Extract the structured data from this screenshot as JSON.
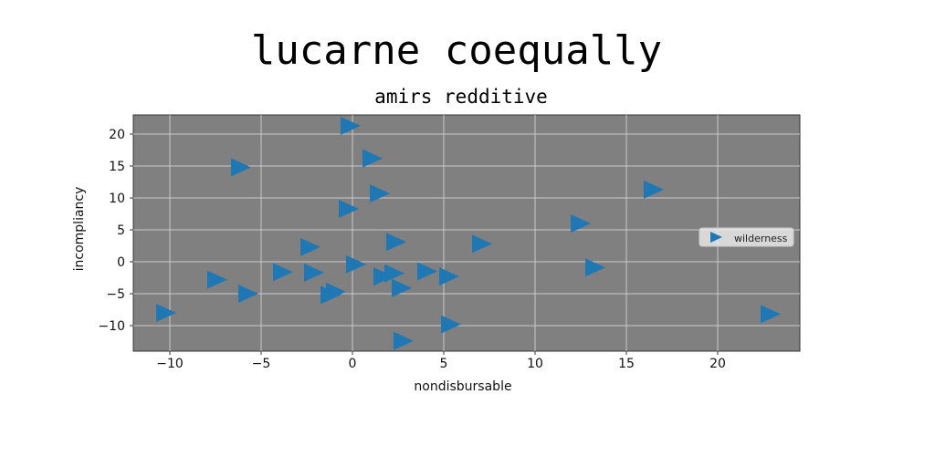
{
  "chart_data": {
    "type": "scatter",
    "title": "lucarne coequally",
    "subtitle": "amirs redditive",
    "xlabel": "nondisbursable",
    "ylabel": "incompliancy",
    "xlim": [
      -12,
      24.5
    ],
    "ylim": [
      -14,
      23
    ],
    "xticks": [
      -10,
      -5,
      0,
      5,
      10,
      15,
      20
    ],
    "yticks": [
      -10,
      -5,
      0,
      5,
      10,
      15,
      20
    ],
    "grid": true,
    "legend_position": "right",
    "colors": {
      "marker": "#1f77b4",
      "plot_bg": "#808080",
      "grid": "#c8c8c8"
    },
    "marker": "triangle-right",
    "series": [
      {
        "name": "wilderness",
        "points": [
          [
            -10.3,
            -8
          ],
          [
            -7.5,
            -2.8
          ],
          [
            -5.8,
            -5
          ],
          [
            -6.2,
            14.8
          ],
          [
            -3.9,
            -1.6
          ],
          [
            -2.2,
            -1.7
          ],
          [
            -2.4,
            2.3
          ],
          [
            -1.3,
            -5.2
          ],
          [
            -1.0,
            -4.7
          ],
          [
            -0.2,
            21.3
          ],
          [
            -0.3,
            8.3
          ],
          [
            0.1,
            -0.4
          ],
          [
            1.0,
            16.2
          ],
          [
            1.4,
            10.7
          ],
          [
            1.6,
            -2.3
          ],
          [
            2.2,
            -1.8
          ],
          [
            2.3,
            3.1
          ],
          [
            2.6,
            -4.1
          ],
          [
            2.7,
            -12.4
          ],
          [
            4.0,
            -1.5
          ],
          [
            5.2,
            -2.3
          ],
          [
            5.3,
            -9.8
          ],
          [
            7.0,
            2.8
          ],
          [
            12.4,
            6.0
          ],
          [
            13.2,
            -0.9
          ],
          [
            16.4,
            11.3
          ],
          [
            22.8,
            -8.2
          ]
        ]
      }
    ]
  }
}
